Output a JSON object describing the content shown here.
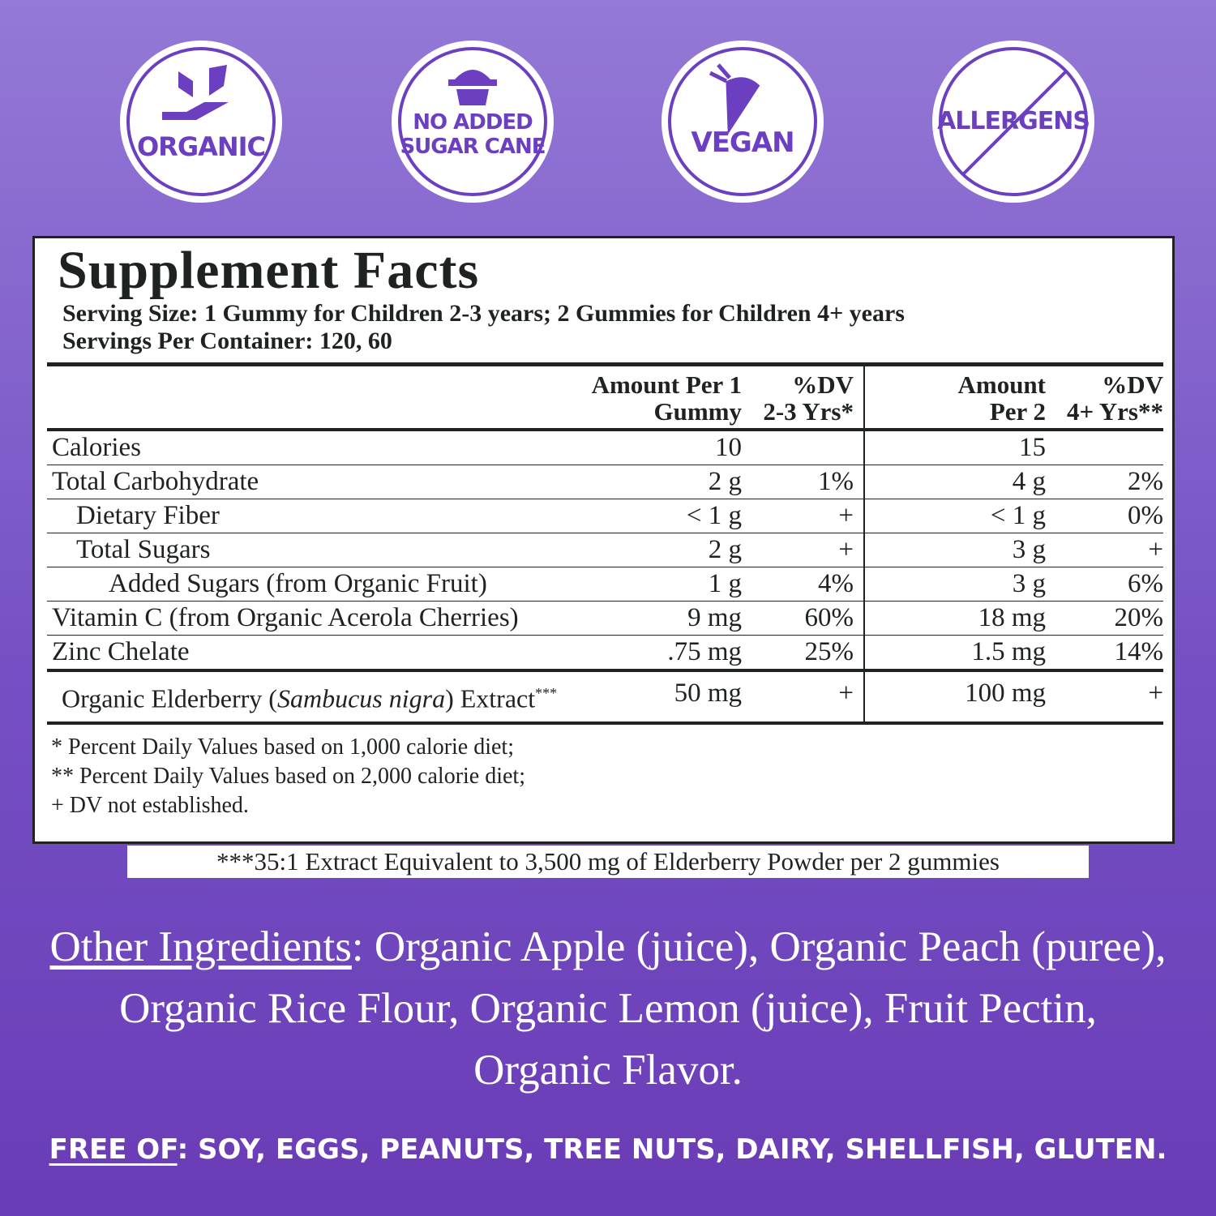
{
  "badges": [
    {
      "lines": [
        "ORGANIC"
      ]
    },
    {
      "lines": [
        "NO ADDED",
        "SUGAR CANE"
      ]
    },
    {
      "lines": [
        "VEGAN"
      ]
    },
    {
      "lines": [
        "ALLERGENS"
      ]
    }
  ],
  "facts": {
    "title": "Supplement Facts",
    "serving_size": "Serving Size: 1 Gummy for Children 2-3 years; 2 Gummies for Children 4+ years",
    "servings_per_container": "Servings Per Container: 120, 60",
    "headers": [
      [
        "Amount Per 1",
        "Gummy"
      ],
      [
        "%DV",
        "2-3 Yrs*"
      ],
      [
        "Amount",
        "Per 2"
      ],
      [
        "%DV",
        "4+ Yrs**"
      ]
    ],
    "rows": [
      [
        "Calories",
        "10",
        "",
        "15",
        ""
      ],
      [
        "Total Carbohydrate",
        "2 g",
        "1%",
        "4 g",
        "2%"
      ],
      [
        "Dietary Fiber",
        "< 1 g",
        "+",
        "< 1 g",
        "0%"
      ],
      [
        "Total Sugars",
        "2 g",
        "+",
        "3 g",
        "+"
      ],
      [
        "Added Sugars (from Organic Fruit)",
        "1 g",
        "4%",
        "3 g",
        "6%"
      ],
      [
        "Vitamin C (from Organic Acerola Cherries)",
        "9 mg",
        "60%",
        "18 mg",
        "20%"
      ],
      [
        "Zinc Chelate",
        ".75 mg",
        "25%",
        "1.5 mg",
        "14%"
      ]
    ],
    "elderberry": {
      "before": "Organic Elderberry (",
      "italic": "Sambucus nigra",
      "after": ") Extract",
      "mark": "***",
      "values": [
        "50 mg",
        "+",
        "100 mg",
        "+"
      ]
    },
    "footnotes": [
      "* Percent Daily Values based on 1,000 calorie diet;",
      "** Percent Daily Values based on 2,000 calorie diet;",
      "+ DV not established."
    ]
  },
  "extract_note": "***35:1 Extract Equivalent to 3,500 mg of Elderberry Powder per 2 gummies",
  "other_ingredients": {
    "label": "Other Ingredients",
    "text": ":  Organic Apple (juice), Organic Peach (puree), Organic Rice Flour, Organic Lemon (juice), Fruit Pectin, Organic Flavor."
  },
  "free_of": {
    "label": "FREE OF",
    "text": ": SOY, EGGS, PEANUTS, TREE NUTS, DAIRY, SHELLFISH, GLUTEN."
  }
}
